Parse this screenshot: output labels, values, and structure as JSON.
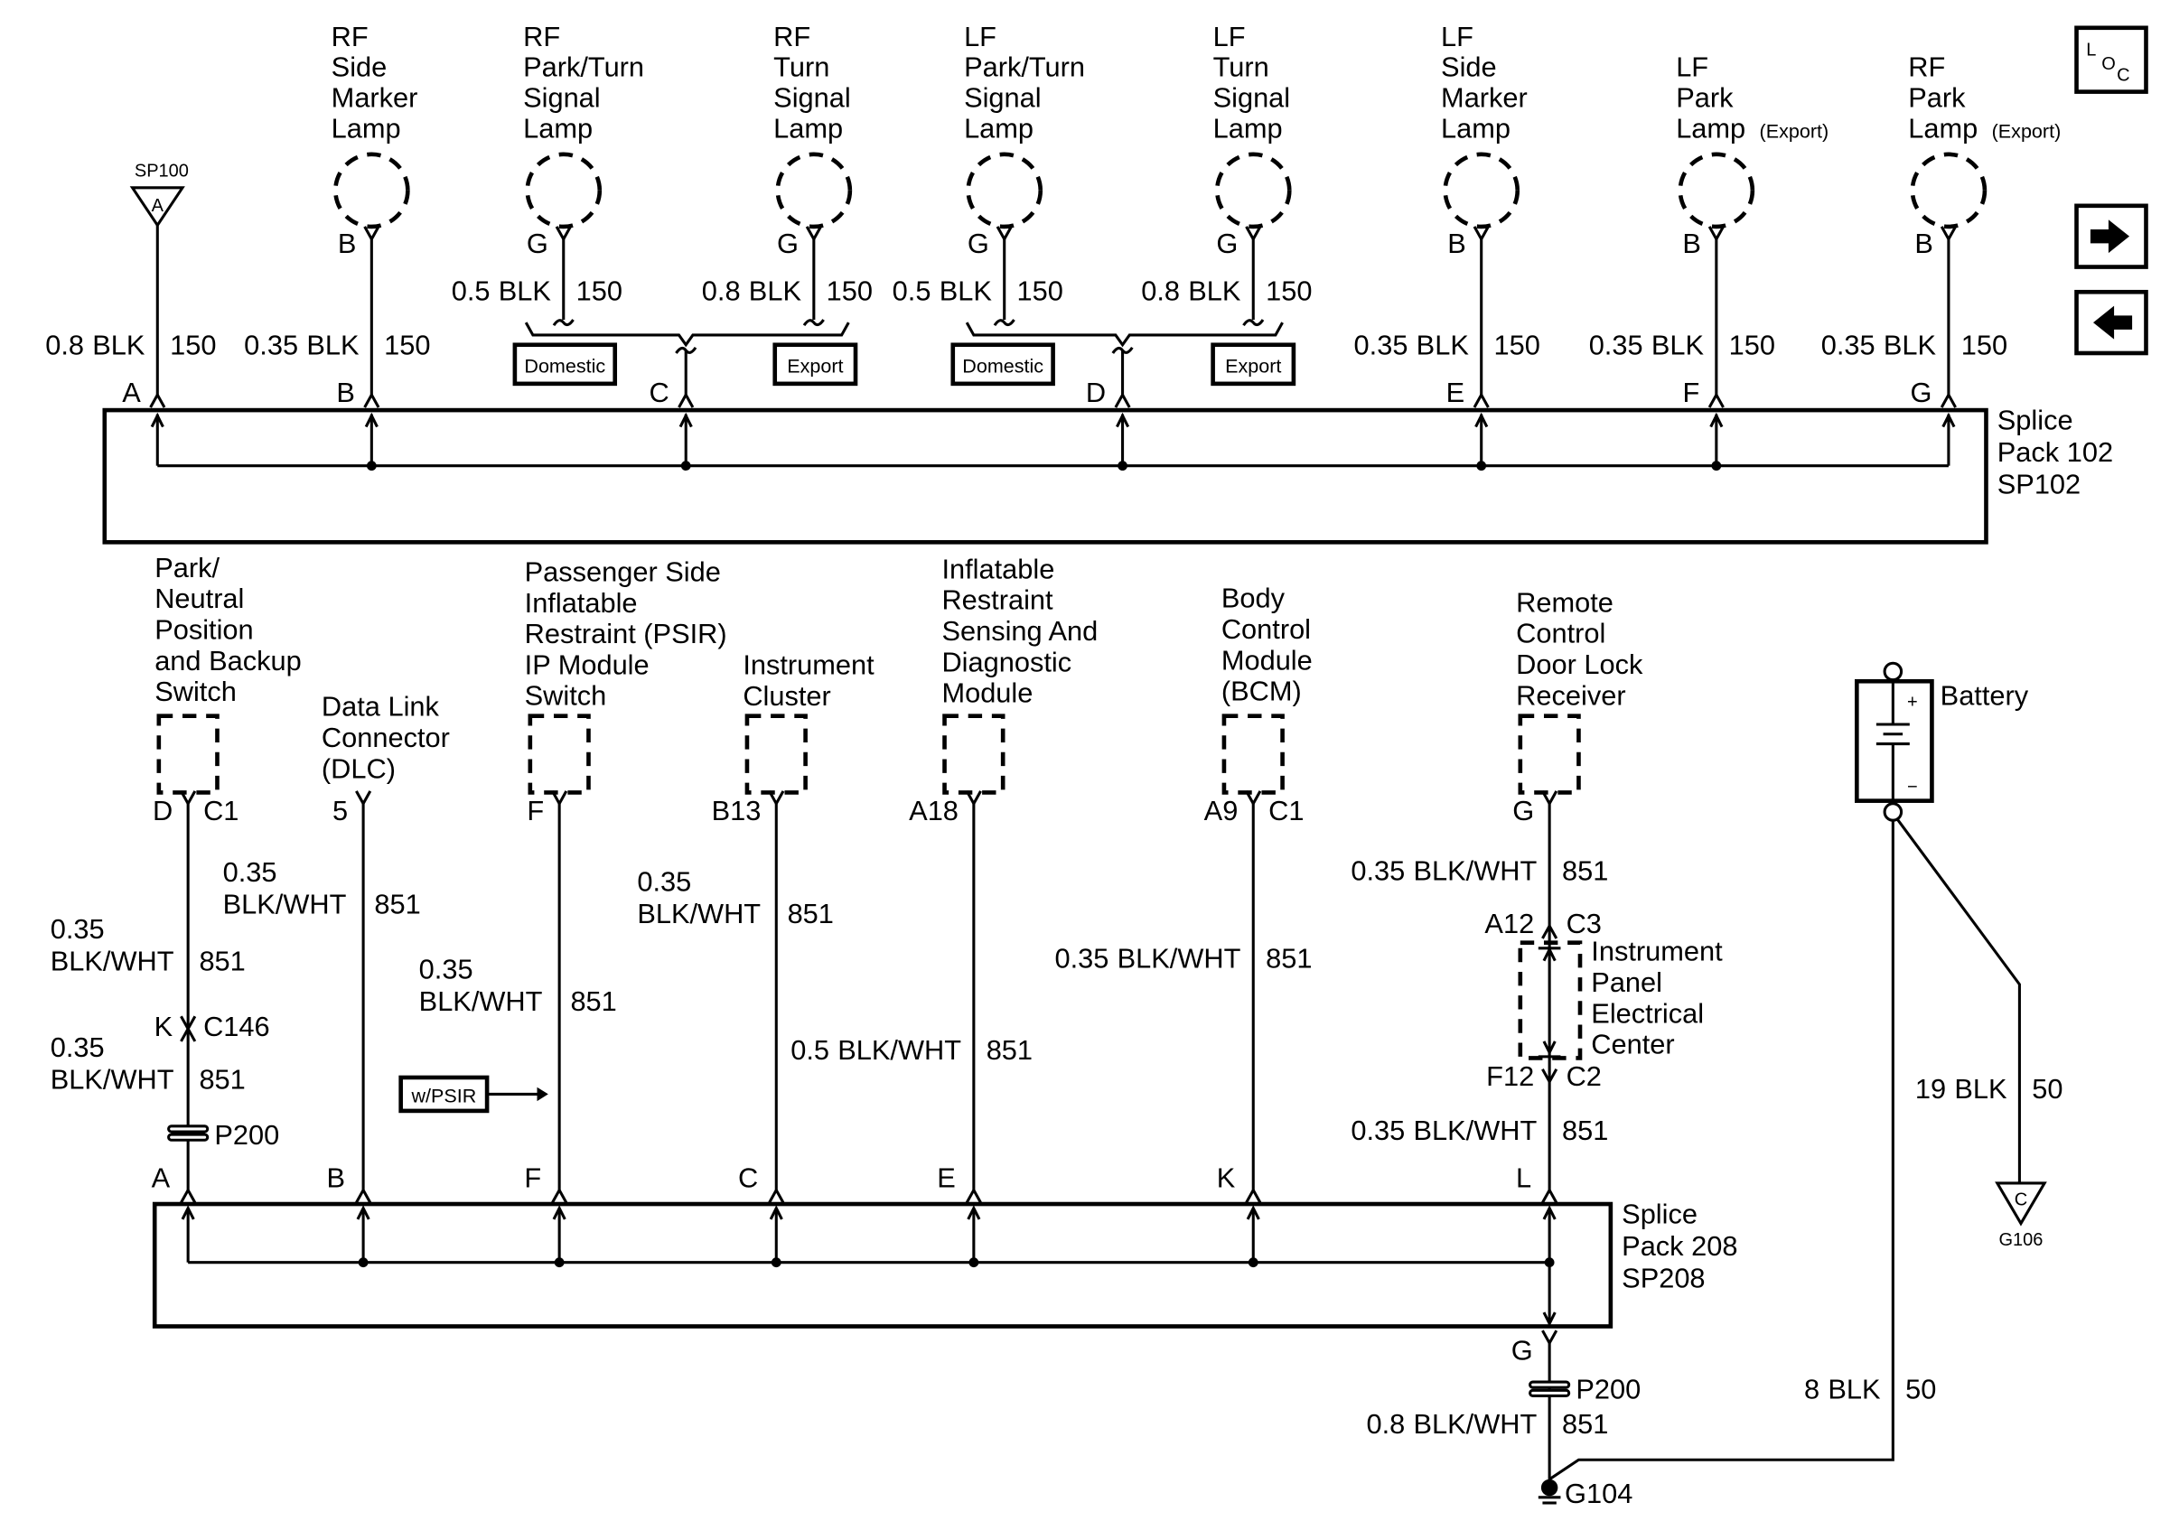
{
  "sp100": {
    "label": "SP100",
    "pin": "A",
    "wire": {
      "size": "0.8",
      "color": "BLK",
      "circuit": "150"
    },
    "splice_pin": "A"
  },
  "top_components": [
    {
      "label": [
        "RF",
        "Side",
        "Marker",
        "Lamp"
      ],
      "suffix": "",
      "pin": "B",
      "wire": {
        "size": "0.35",
        "color": "BLK",
        "circuit": "150"
      },
      "splice_pin": "B"
    },
    {
      "label": [
        "RF",
        "Park/Turn",
        "Signal",
        "Lamp"
      ],
      "suffix": "",
      "pin": "G",
      "wire": {
        "size": "0.5",
        "color": "BLK",
        "circuit": "150"
      }
    },
    {
      "label": [
        "RF",
        "Turn",
        "Signal",
        "Lamp"
      ],
      "suffix": "",
      "pin": "G",
      "wire": {
        "size": "0.8",
        "color": "BLK",
        "circuit": "150"
      }
    },
    {
      "label": [
        "LF",
        "Park/Turn",
        "Signal",
        "Lamp"
      ],
      "suffix": "",
      "pin": "G",
      "wire": {
        "size": "0.5",
        "color": "BLK",
        "circuit": "150"
      }
    },
    {
      "label": [
        "LF",
        "Turn",
        "Signal",
        "Lamp"
      ],
      "suffix": "",
      "pin": "G",
      "wire": {
        "size": "0.8",
        "color": "BLK",
        "circuit": "150"
      }
    },
    {
      "label": [
        "LF",
        "Side",
        "Marker",
        "Lamp"
      ],
      "suffix": "",
      "pin": "B",
      "wire": {
        "size": "0.35",
        "color": "BLK",
        "circuit": "150"
      },
      "splice_pin": "E"
    },
    {
      "label": [
        "LF",
        "Park",
        "Lamp"
      ],
      "suffix": "(Export)",
      "pin": "B",
      "wire": {
        "size": "0.35",
        "color": "BLK",
        "circuit": "150"
      },
      "splice_pin": "F"
    },
    {
      "label": [
        "RF",
        "Park",
        "Lamp"
      ],
      "suffix": "(Export)",
      "pin": "B",
      "wire": {
        "size": "0.35",
        "color": "BLK",
        "circuit": "150"
      },
      "splice_pin": "G"
    }
  ],
  "option_groups": [
    {
      "domestic": "Domestic",
      "export": "Export",
      "splice_pin": "C"
    },
    {
      "domestic": "Domestic",
      "export": "Export",
      "splice_pin": "D"
    }
  ],
  "splice_pack_102": [
    "Splice",
    "Pack 102",
    "SP102"
  ],
  "nav_icons": {
    "loc": [
      "L",
      "O",
      "C"
    ],
    "next": "arrow-right-icon",
    "prev": "arrow-left-icon"
  },
  "bottom_components": [
    {
      "label": [
        "Park/",
        "Neutral",
        "Position",
        "and Backup",
        "Switch"
      ],
      "pin": "D",
      "connector": "C1",
      "wire": {
        "size": "0.35",
        "color": "BLK/WHT",
        "circuit": "851"
      },
      "inline": {
        "pin": "K",
        "connector": "C146"
      },
      "wire2": {
        "size": "0.35",
        "color": "BLK/WHT",
        "circuit": "851"
      },
      "pass_through": "P200",
      "splice_pin": "A"
    },
    {
      "label": [
        "Data Link",
        "Connector",
        "(DLC)"
      ],
      "pin": "5",
      "wire": {
        "size": "0.35",
        "color": "BLK/WHT",
        "circuit": "851"
      },
      "splice_pin": "B"
    },
    {
      "label": [
        "Passenger Side",
        "Inflatable",
        "Restraint (PSIR)",
        "IP Module",
        "Switch"
      ],
      "pin": "F",
      "wire": {
        "size": "0.35",
        "color": "BLK/WHT",
        "circuit": "851"
      },
      "option": "w/PSIR",
      "splice_pin": "F"
    },
    {
      "label": [
        "Instrument",
        "Cluster"
      ],
      "pin": "B13",
      "wire": {
        "size": "0.35",
        "color": "BLK/WHT",
        "circuit": "851"
      },
      "splice_pin": "C"
    },
    {
      "label": [
        "Inflatable",
        "Restraint",
        "Sensing And",
        "Diagnostic",
        "Module"
      ],
      "pin": "A18",
      "wire": {
        "size": "0.5",
        "color": "BLK/WHT",
        "circuit": "851"
      },
      "splice_pin": "E"
    },
    {
      "label": [
        "Body",
        "Control",
        "Module",
        "(BCM)"
      ],
      "pin": "A9",
      "connector": "C1",
      "wire": {
        "size": "0.35",
        "color": "BLK/WHT",
        "circuit": "851"
      },
      "splice_pin": "K"
    },
    {
      "label": [
        "Remote",
        "Control",
        "Door Lock",
        "Receiver"
      ],
      "pin": "G",
      "wire": {
        "size": "0.35",
        "color": "BLK/WHT",
        "circuit": "851"
      },
      "ipec": {
        "label": [
          "Instrument",
          "Panel",
          "Electrical",
          "Center"
        ],
        "in_pin": "A12",
        "in_connector": "C3",
        "out_pin": "F12",
        "out_connector": "C2"
      },
      "wire2": {
        "size": "0.35",
        "color": "BLK/WHT",
        "circuit": "851"
      },
      "splice_pin": "L"
    }
  ],
  "splice_pack_208": [
    "Splice",
    "Pack 208",
    "SP208"
  ],
  "splice_208_output": {
    "pin": "G",
    "pass_through": "P200",
    "wire": {
      "size": "0.8",
      "color": "BLK/WHT",
      "circuit": "851"
    },
    "ground": "G104"
  },
  "battery": {
    "label": "Battery",
    "plus": "+",
    "minus": "−",
    "ground_wire": {
      "size": "8",
      "color": "BLK",
      "circuit": "50"
    },
    "chassis_wire": {
      "size": "19",
      "color": "BLK",
      "circuit": "50"
    },
    "chassis_ground": {
      "pin": "C",
      "label": "G106"
    }
  }
}
